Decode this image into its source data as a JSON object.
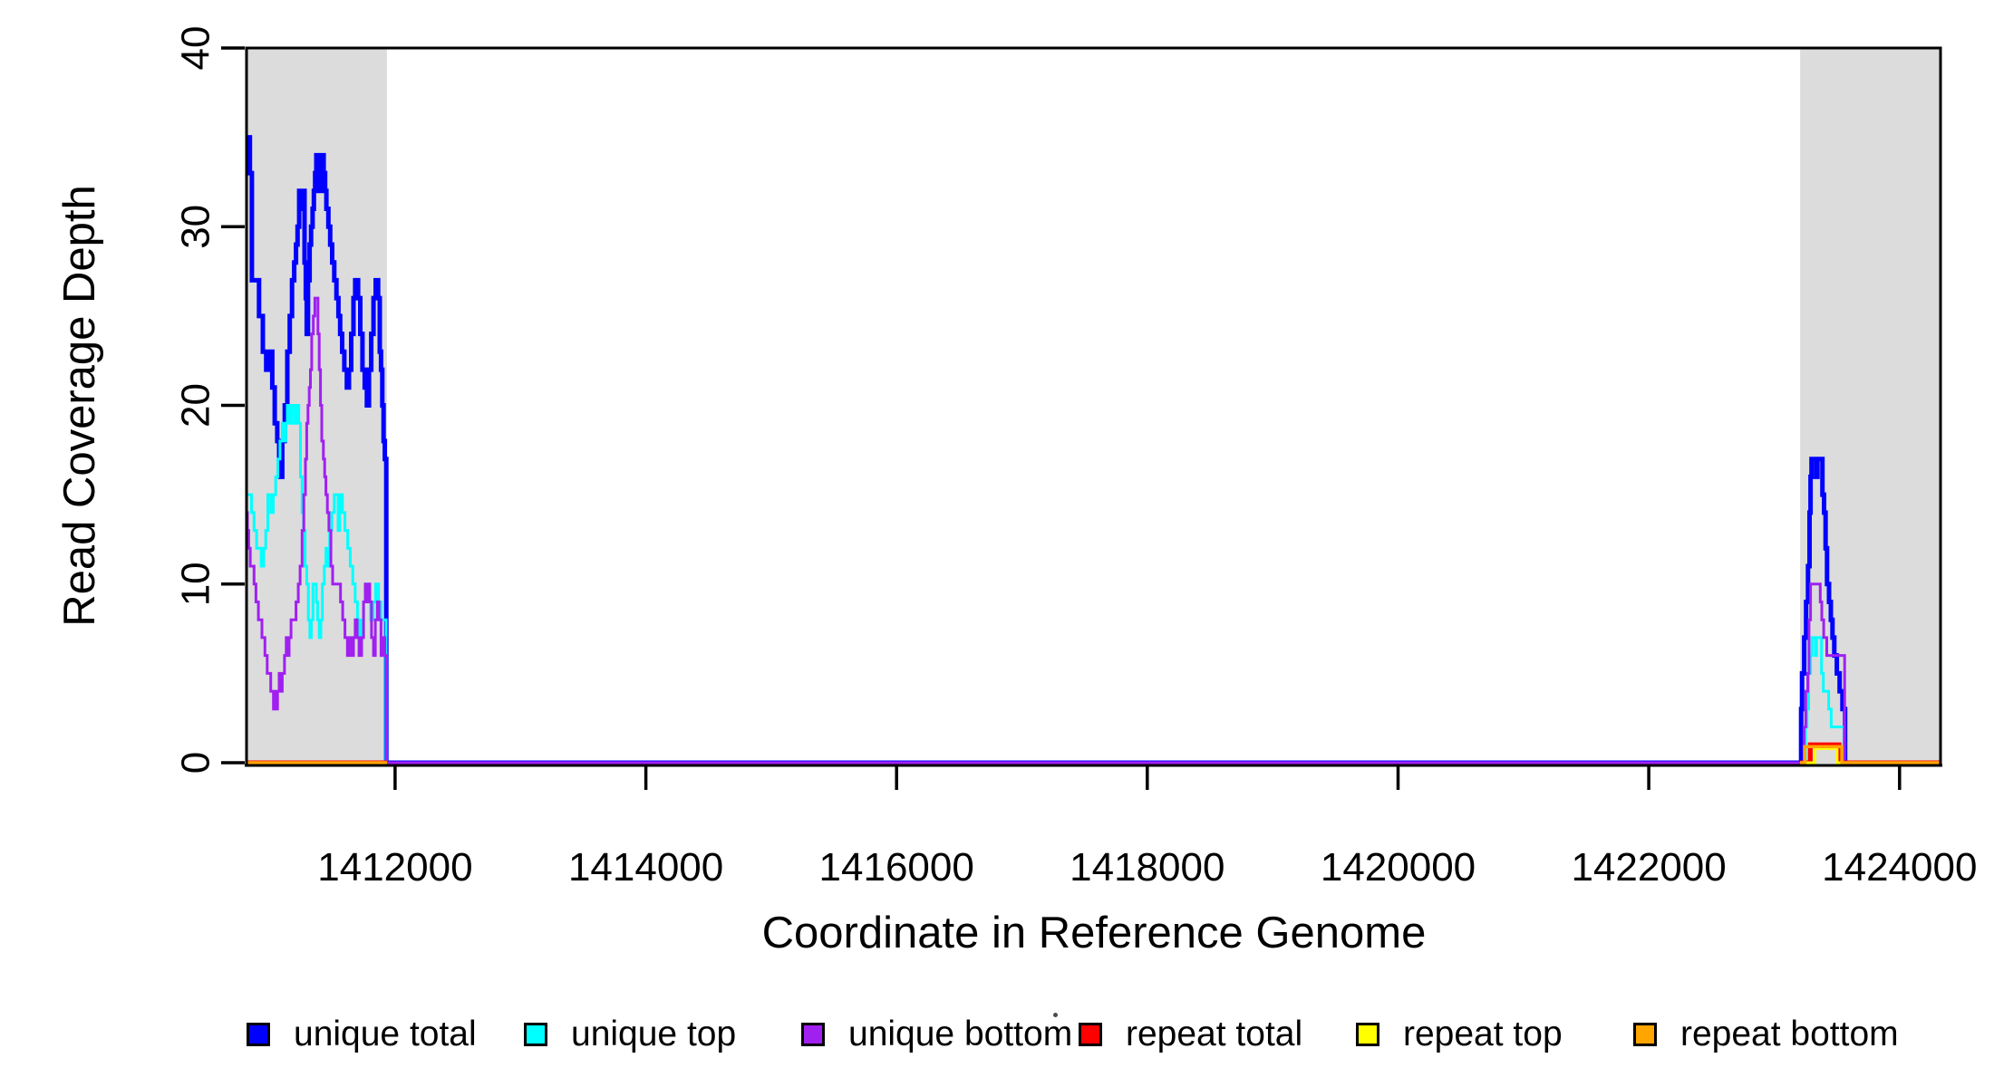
{
  "chart_data": {
    "type": "line",
    "title": "",
    "xlabel": "Coordinate in Reference Genome",
    "ylabel": "Read Coverage Depth",
    "xlim": [
      1410815,
      1424327
    ],
    "ylim": [
      0,
      40
    ],
    "x_ticks": [
      1412000,
      1414000,
      1416000,
      1418000,
      1420000,
      1422000,
      1424000
    ],
    "y_ticks": [
      0,
      10,
      20,
      30,
      40
    ],
    "step": true,
    "grid": false,
    "legend_position": "bottom",
    "region_color": "#DCDCDC",
    "axis_color": "#000000",
    "highlight_regions": [
      [
        1410815,
        1411935
      ],
      [
        1423207,
        1424327
      ]
    ],
    "series": [
      {
        "name": "unique total",
        "color": "#0000FF",
        "width": 5,
        "points": [
          [
            1410815,
            35
          ],
          [
            1410842,
            33
          ],
          [
            1410858,
            27
          ],
          [
            1410915,
            25
          ],
          [
            1410945,
            23
          ],
          [
            1410972,
            22
          ],
          [
            1410988,
            23
          ],
          [
            1411020,
            21
          ],
          [
            1411040,
            19
          ],
          [
            1411060,
            18
          ],
          [
            1411075,
            17
          ],
          [
            1411085,
            16
          ],
          [
            1411100,
            18
          ],
          [
            1411120,
            20
          ],
          [
            1411140,
            23
          ],
          [
            1411160,
            25
          ],
          [
            1411178,
            27
          ],
          [
            1411195,
            28
          ],
          [
            1411210,
            29
          ],
          [
            1411222,
            30
          ],
          [
            1411235,
            32
          ],
          [
            1411252,
            31
          ],
          [
            1411262,
            32
          ],
          [
            1411278,
            28
          ],
          [
            1411288,
            26
          ],
          [
            1411295,
            24
          ],
          [
            1411305,
            27
          ],
          [
            1411318,
            29
          ],
          [
            1411330,
            30
          ],
          [
            1411342,
            31
          ],
          [
            1411352,
            32
          ],
          [
            1411362,
            33
          ],
          [
            1411372,
            34
          ],
          [
            1411388,
            33
          ],
          [
            1411398,
            32
          ],
          [
            1411412,
            34
          ],
          [
            1411430,
            33
          ],
          [
            1411442,
            32
          ],
          [
            1411452,
            31
          ],
          [
            1411468,
            30
          ],
          [
            1411482,
            29
          ],
          [
            1411498,
            28
          ],
          [
            1411515,
            27
          ],
          [
            1411532,
            26
          ],
          [
            1411548,
            25
          ],
          [
            1411562,
            24
          ],
          [
            1411578,
            23
          ],
          [
            1411595,
            22
          ],
          [
            1411615,
            21
          ],
          [
            1411632,
            22
          ],
          [
            1411650,
            24
          ],
          [
            1411668,
            26
          ],
          [
            1411682,
            27
          ],
          [
            1411705,
            26
          ],
          [
            1411722,
            24
          ],
          [
            1411740,
            22
          ],
          [
            1411758,
            21
          ],
          [
            1411775,
            20
          ],
          [
            1411792,
            22
          ],
          [
            1411810,
            24
          ],
          [
            1411828,
            26
          ],
          [
            1411845,
            27
          ],
          [
            1411865,
            26
          ],
          [
            1411878,
            23
          ],
          [
            1411888,
            22
          ],
          [
            1411898,
            20
          ],
          [
            1411908,
            18
          ],
          [
            1411918,
            17
          ],
          [
            1411930,
            0
          ],
          [
            1423215,
            3
          ],
          [
            1423222,
            5
          ],
          [
            1423240,
            7
          ],
          [
            1423255,
            9
          ],
          [
            1423270,
            11
          ],
          [
            1423282,
            14
          ],
          [
            1423290,
            16
          ],
          [
            1423298,
            17
          ],
          [
            1423335,
            16
          ],
          [
            1423345,
            17
          ],
          [
            1423385,
            15
          ],
          [
            1423398,
            14
          ],
          [
            1423410,
            12
          ],
          [
            1423422,
            10
          ],
          [
            1423438,
            9
          ],
          [
            1423452,
            8
          ],
          [
            1423465,
            7
          ],
          [
            1423480,
            6
          ],
          [
            1423500,
            5
          ],
          [
            1423522,
            4
          ],
          [
            1423545,
            3
          ],
          [
            1423566,
            0
          ]
        ]
      },
      {
        "name": "unique top",
        "color": "#00FFFF",
        "width": 3,
        "points": [
          [
            1410815,
            15
          ],
          [
            1410855,
            14
          ],
          [
            1410875,
            13
          ],
          [
            1410895,
            12
          ],
          [
            1410932,
            11
          ],
          [
            1410952,
            12
          ],
          [
            1410968,
            13
          ],
          [
            1410985,
            15
          ],
          [
            1411010,
            14
          ],
          [
            1411028,
            15
          ],
          [
            1411048,
            16
          ],
          [
            1411065,
            17
          ],
          [
            1411082,
            18
          ],
          [
            1411100,
            19
          ],
          [
            1411118,
            18
          ],
          [
            1411128,
            19
          ],
          [
            1411140,
            20
          ],
          [
            1411162,
            19
          ],
          [
            1411178,
            20
          ],
          [
            1411200,
            19
          ],
          [
            1411215,
            20
          ],
          [
            1411232,
            19
          ],
          [
            1411245,
            16
          ],
          [
            1411258,
            14
          ],
          [
            1411270,
            13
          ],
          [
            1411282,
            11
          ],
          [
            1411295,
            10
          ],
          [
            1411308,
            8
          ],
          [
            1411320,
            7
          ],
          [
            1411332,
            8
          ],
          [
            1411345,
            10
          ],
          [
            1411362,
            10
          ],
          [
            1411372,
            9
          ],
          [
            1411382,
            8
          ],
          [
            1411395,
            7
          ],
          [
            1411408,
            8
          ],
          [
            1411420,
            10
          ],
          [
            1411435,
            11
          ],
          [
            1411448,
            12
          ],
          [
            1411462,
            11
          ],
          [
            1411478,
            13
          ],
          [
            1411495,
            14
          ],
          [
            1411515,
            15
          ],
          [
            1411545,
            13
          ],
          [
            1411558,
            15
          ],
          [
            1411580,
            14
          ],
          [
            1411600,
            13
          ],
          [
            1411622,
            12
          ],
          [
            1411642,
            11
          ],
          [
            1411662,
            10
          ],
          [
            1411682,
            9
          ],
          [
            1411700,
            8
          ],
          [
            1411715,
            7
          ],
          [
            1411730,
            8
          ],
          [
            1411748,
            9
          ],
          [
            1411765,
            10
          ],
          [
            1411785,
            9
          ],
          [
            1411805,
            8
          ],
          [
            1411825,
            9
          ],
          [
            1411845,
            10
          ],
          [
            1411868,
            9
          ],
          [
            1411888,
            8
          ],
          [
            1411928,
            0
          ],
          [
            1423250,
            2
          ],
          [
            1423262,
            3
          ],
          [
            1423275,
            5
          ],
          [
            1423290,
            6
          ],
          [
            1423302,
            7
          ],
          [
            1423328,
            6
          ],
          [
            1423338,
            7
          ],
          [
            1423378,
            5
          ],
          [
            1423392,
            4
          ],
          [
            1423435,
            3
          ],
          [
            1423455,
            2
          ],
          [
            1423560,
            0
          ]
        ]
      },
      {
        "name": "unique bottom",
        "color": "#A020F0",
        "width": 3,
        "points": [
          [
            1410815,
            14
          ],
          [
            1410822,
            13
          ],
          [
            1410832,
            12
          ],
          [
            1410845,
            11
          ],
          [
            1410875,
            10
          ],
          [
            1410890,
            9
          ],
          [
            1410910,
            8
          ],
          [
            1410938,
            7
          ],
          [
            1410962,
            6
          ],
          [
            1410980,
            5
          ],
          [
            1411008,
            4
          ],
          [
            1411030,
            3
          ],
          [
            1411042,
            4
          ],
          [
            1411052,
            3
          ],
          [
            1411062,
            4
          ],
          [
            1411075,
            5
          ],
          [
            1411090,
            4
          ],
          [
            1411100,
            5
          ],
          [
            1411118,
            6
          ],
          [
            1411132,
            7
          ],
          [
            1411145,
            6
          ],
          [
            1411155,
            7
          ],
          [
            1411170,
            8
          ],
          [
            1411210,
            9
          ],
          [
            1411228,
            10
          ],
          [
            1411242,
            11
          ],
          [
            1411258,
            13
          ],
          [
            1411272,
            15
          ],
          [
            1411285,
            17
          ],
          [
            1411295,
            19
          ],
          [
            1411305,
            20
          ],
          [
            1411315,
            21
          ],
          [
            1411325,
            22
          ],
          [
            1411335,
            24
          ],
          [
            1411348,
            25
          ],
          [
            1411360,
            26
          ],
          [
            1411385,
            24
          ],
          [
            1411395,
            22
          ],
          [
            1411405,
            20
          ],
          [
            1411415,
            18
          ],
          [
            1411428,
            17
          ],
          [
            1411438,
            16
          ],
          [
            1411448,
            15
          ],
          [
            1411460,
            14
          ],
          [
            1411472,
            13
          ],
          [
            1411488,
            11
          ],
          [
            1411502,
            10
          ],
          [
            1411565,
            9
          ],
          [
            1411582,
            8
          ],
          [
            1411600,
            7
          ],
          [
            1411620,
            6
          ],
          [
            1411638,
            7
          ],
          [
            1411652,
            6
          ],
          [
            1411668,
            7
          ],
          [
            1411682,
            8
          ],
          [
            1411698,
            7
          ],
          [
            1411712,
            6
          ],
          [
            1411733,
            7
          ],
          [
            1411748,
            9
          ],
          [
            1411762,
            10
          ],
          [
            1411775,
            9
          ],
          [
            1411785,
            10
          ],
          [
            1411798,
            9
          ],
          [
            1411812,
            7
          ],
          [
            1411828,
            6
          ],
          [
            1411842,
            8
          ],
          [
            1411858,
            9
          ],
          [
            1411872,
            8
          ],
          [
            1411888,
            6
          ],
          [
            1411902,
            7
          ],
          [
            1411918,
            6
          ],
          [
            1411932,
            0
          ],
          [
            1423238,
            2
          ],
          [
            1423252,
            4
          ],
          [
            1423268,
            5
          ],
          [
            1423278,
            8
          ],
          [
            1423290,
            10
          ],
          [
            1423368,
            9
          ],
          [
            1423380,
            8
          ],
          [
            1423395,
            7
          ],
          [
            1423420,
            6
          ],
          [
            1423562,
            0
          ]
        ]
      },
      {
        "name": "repeat total",
        "color": "#FF0000",
        "width": 5,
        "points": [
          [
            1410815,
            0
          ],
          [
            1423288,
            1
          ],
          [
            1423518,
            0
          ]
        ]
      },
      {
        "name": "repeat top",
        "color": "#FFFF00",
        "width": 3,
        "points": [
          [
            1410815,
            0
          ],
          [
            1423324,
            0.8
          ],
          [
            1423502,
            0
          ]
        ]
      },
      {
        "name": "repeat bottom",
        "color": "#FFA500",
        "width": 3.5,
        "points": [
          [
            1410815,
            0
          ],
          [
            1423244,
            0.9
          ],
          [
            1423540,
            0
          ]
        ]
      }
    ]
  }
}
